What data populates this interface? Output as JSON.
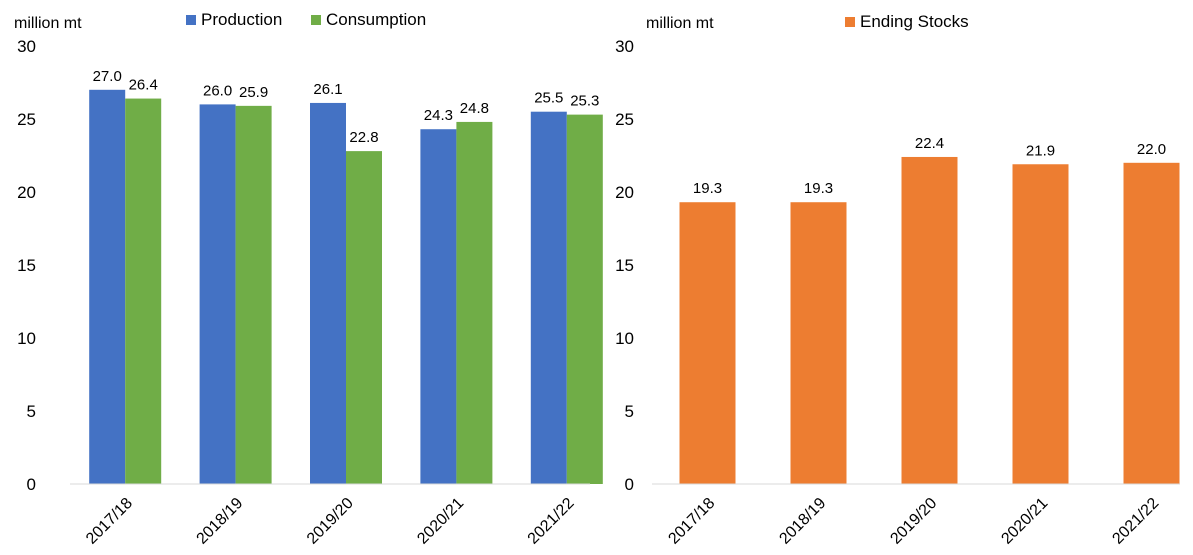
{
  "chart_data": [
    {
      "type": "bar",
      "unit_label": "million mt",
      "categories": [
        "2017/18",
        "2018/19",
        "2019/20",
        "2020/21",
        "2021/22"
      ],
      "series": [
        {
          "name": "Production",
          "color": "#4472C4",
          "values": [
            27.0,
            26.0,
            26.1,
            24.3,
            25.5
          ]
        },
        {
          "name": "Consumption",
          "color": "#70AD47",
          "values": [
            26.4,
            25.9,
            22.8,
            24.8,
            25.3
          ]
        }
      ],
      "ylim": [
        0,
        30
      ],
      "yticks": [
        0,
        5,
        10,
        15,
        20,
        25,
        30
      ],
      "legend_position": "top",
      "grid": false
    },
    {
      "type": "bar",
      "unit_label": "million mt",
      "categories": [
        "2017/18",
        "2018/19",
        "2019/20",
        "2020/21",
        "2021/22"
      ],
      "series": [
        {
          "name": "Ending Stocks",
          "color": "#ED7D31",
          "values": [
            19.3,
            19.3,
            22.4,
            21.9,
            22.0
          ]
        }
      ],
      "ylim": [
        0,
        30
      ],
      "yticks": [
        0,
        5,
        10,
        15,
        20,
        25,
        30
      ],
      "legend_position": "top",
      "grid": false
    }
  ]
}
